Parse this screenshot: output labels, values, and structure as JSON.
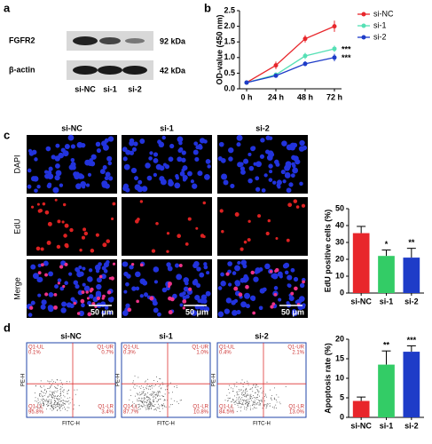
{
  "panel_labels": [
    "a",
    "b",
    "c",
    "d"
  ],
  "western_blot": {
    "proteins": [
      {
        "name": "FGFR2",
        "size": "92 kDa"
      },
      {
        "name": "β-actin",
        "size": "42 kDa"
      }
    ],
    "lanes": [
      "si-NC",
      "si-1",
      "si-2"
    ]
  },
  "edu_imaging": {
    "groups": [
      "si-NC",
      "si-1",
      "si-2"
    ],
    "channels": [
      "DAPI",
      "EdU",
      "Merge"
    ],
    "scale_bar": "50 μm"
  },
  "flow_cytometry": {
    "groups": [
      "si-NC",
      "si-1",
      "si-2"
    ],
    "x_label": "FITC-H",
    "y_label": "PE-H",
    "quadrants": [
      [
        {
          "name": "Q1-UL",
          "value": "0.1%"
        },
        {
          "name": "Q1-UR",
          "value": "0.7%"
        },
        {
          "name": "Q1-LL",
          "value": "95.8%"
        },
        {
          "name": "Q1-LR",
          "value": "3.4%"
        }
      ],
      [
        {
          "name": "Q1-UL",
          "value": "0.3%"
        },
        {
          "name": "Q1-UR",
          "value": "1.0%"
        },
        {
          "name": "Q1-LL",
          "value": "87.7%"
        },
        {
          "name": "Q1-LR",
          "value": "10.8%"
        }
      ],
      [
        {
          "name": "Q1-UL",
          "value": "0.4%"
        },
        {
          "name": "Q1-UR",
          "value": "2.1%"
        },
        {
          "name": "Q1-LL",
          "value": "84.5%"
        },
        {
          "name": "Q1-LR",
          "value": "13.0%"
        }
      ]
    ]
  },
  "chart_data": [
    {
      "type": "line",
      "ylabel": "OD-value (450 nm)",
      "categories": [
        "0 h",
        "24 h",
        "48 h",
        "72 h"
      ],
      "ylim": [
        0,
        2.5
      ],
      "yticks": [
        {
          "value": 0,
          "label": "0.0"
        },
        {
          "value": 0.5,
          "label": "0.5"
        },
        {
          "value": 1,
          "label": "1.0"
        },
        {
          "value": 1.5,
          "label": "1.5"
        },
        {
          "value": 2,
          "label": "2.0"
        },
        {
          "value": 2.5,
          "label": "2.5"
        }
      ],
      "legend": "top-right",
      "series": [
        {
          "name": "si-NC",
          "color": "#e8262b",
          "values": [
            0.2,
            0.75,
            1.6,
            2.0
          ],
          "errors": [
            0.05,
            0.12,
            0.12,
            0.18
          ]
        },
        {
          "name": "si-1",
          "color": "#55e0b5",
          "values": [
            0.2,
            0.45,
            1.05,
            1.28
          ],
          "errors": [
            0.03,
            0.06,
            0.1,
            0.1
          ],
          "significance": "***"
        },
        {
          "name": "si-2",
          "color": "#1e3cc8",
          "values": [
            0.2,
            0.42,
            0.8,
            1.0
          ],
          "errors": [
            0.03,
            0.05,
            0.08,
            0.12
          ],
          "significance": "***"
        }
      ]
    },
    {
      "type": "bar",
      "ylabel": "EdU positive cells (%)",
      "categories": [
        "si-NC",
        "si-1",
        "si-2"
      ],
      "values": [
        35.5,
        22,
        21
      ],
      "errors": [
        4,
        3.5,
        5.5
      ],
      "colors": [
        "#e8262b",
        "#33cc66",
        "#1e3cc8"
      ],
      "significance": [
        null,
        "*",
        "**"
      ],
      "ylim": [
        0,
        50
      ],
      "yticks": [
        0,
        10,
        20,
        30,
        40,
        50
      ]
    },
    {
      "type": "bar",
      "ylabel": "Apoptosis rate (%)",
      "categories": [
        "si-NC",
        "si-1",
        "si-2"
      ],
      "values": [
        4.2,
        13.5,
        16.8
      ],
      "errors": [
        1,
        3.5,
        1.5
      ],
      "colors": [
        "#e8262b",
        "#33cc66",
        "#1e3cc8"
      ],
      "significance": [
        null,
        "**",
        "***"
      ],
      "ylim": [
        0,
        20
      ],
      "yticks": [
        0,
        5,
        10,
        15,
        20
      ]
    }
  ]
}
